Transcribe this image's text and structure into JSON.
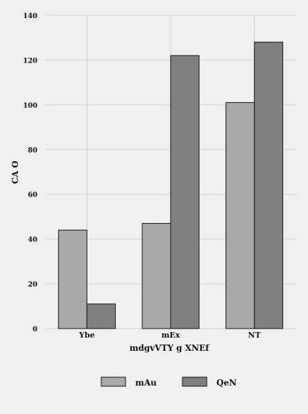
{
  "chart_data": {
    "type": "bar",
    "title": "",
    "xlabel": "mdgvVTY g XNEf",
    "ylabel": "CA O",
    "categories": [
      "Ybe",
      "mEx",
      "NT"
    ],
    "series": [
      {
        "name": "mAu",
        "values": [
          44,
          47,
          101
        ],
        "color": "#a9a9a9"
      },
      {
        "name": "QeN",
        "values": [
          11,
          122,
          128
        ],
        "color": "#808080"
      }
    ],
    "ylim": [
      0,
      140
    ],
    "yticks": [
      0,
      20,
      40,
      60,
      80,
      100,
      120,
      140
    ],
    "grid": true,
    "legend_position": "bottom-center",
    "background": "#f0f0f0",
    "grid_color": "#cfcfcf"
  }
}
